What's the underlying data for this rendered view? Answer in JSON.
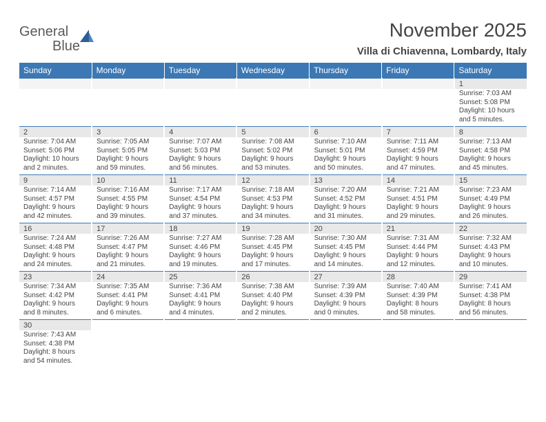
{
  "logo": {
    "word1": "General",
    "word2": "Blue"
  },
  "title": "November 2025",
  "location": "Villa di Chiavenna, Lombardy, Italy",
  "colors": {
    "header_bg": "#3c78b4",
    "header_text": "#ffffff",
    "daynum_bg": "#e8e8e8",
    "rule": "#3c78b4",
    "text": "#444444",
    "logo_gray": "#5a5a5a",
    "logo_blue": "#3c78b4"
  },
  "typography": {
    "title_fontsize": 28,
    "location_fontsize": 15,
    "weekday_fontsize": 12,
    "daynum_fontsize": 11,
    "body_fontsize": 10
  },
  "weekdays": [
    "Sunday",
    "Monday",
    "Tuesday",
    "Wednesday",
    "Thursday",
    "Friday",
    "Saturday"
  ],
  "weeks": [
    [
      null,
      null,
      null,
      null,
      null,
      null,
      {
        "d": "1",
        "sr": "Sunrise: 7:03 AM",
        "ss": "Sunset: 5:08 PM",
        "dl": "Daylight: 10 hours and 5 minutes."
      }
    ],
    [
      {
        "d": "2",
        "sr": "Sunrise: 7:04 AM",
        "ss": "Sunset: 5:06 PM",
        "dl": "Daylight: 10 hours and 2 minutes."
      },
      {
        "d": "3",
        "sr": "Sunrise: 7:05 AM",
        "ss": "Sunset: 5:05 PM",
        "dl": "Daylight: 9 hours and 59 minutes."
      },
      {
        "d": "4",
        "sr": "Sunrise: 7:07 AM",
        "ss": "Sunset: 5:03 PM",
        "dl": "Daylight: 9 hours and 56 minutes."
      },
      {
        "d": "5",
        "sr": "Sunrise: 7:08 AM",
        "ss": "Sunset: 5:02 PM",
        "dl": "Daylight: 9 hours and 53 minutes."
      },
      {
        "d": "6",
        "sr": "Sunrise: 7:10 AM",
        "ss": "Sunset: 5:01 PM",
        "dl": "Daylight: 9 hours and 50 minutes."
      },
      {
        "d": "7",
        "sr": "Sunrise: 7:11 AM",
        "ss": "Sunset: 4:59 PM",
        "dl": "Daylight: 9 hours and 47 minutes."
      },
      {
        "d": "8",
        "sr": "Sunrise: 7:13 AM",
        "ss": "Sunset: 4:58 PM",
        "dl": "Daylight: 9 hours and 45 minutes."
      }
    ],
    [
      {
        "d": "9",
        "sr": "Sunrise: 7:14 AM",
        "ss": "Sunset: 4:57 PM",
        "dl": "Daylight: 9 hours and 42 minutes."
      },
      {
        "d": "10",
        "sr": "Sunrise: 7:16 AM",
        "ss": "Sunset: 4:55 PM",
        "dl": "Daylight: 9 hours and 39 minutes."
      },
      {
        "d": "11",
        "sr": "Sunrise: 7:17 AM",
        "ss": "Sunset: 4:54 PM",
        "dl": "Daylight: 9 hours and 37 minutes."
      },
      {
        "d": "12",
        "sr": "Sunrise: 7:18 AM",
        "ss": "Sunset: 4:53 PM",
        "dl": "Daylight: 9 hours and 34 minutes."
      },
      {
        "d": "13",
        "sr": "Sunrise: 7:20 AM",
        "ss": "Sunset: 4:52 PM",
        "dl": "Daylight: 9 hours and 31 minutes."
      },
      {
        "d": "14",
        "sr": "Sunrise: 7:21 AM",
        "ss": "Sunset: 4:51 PM",
        "dl": "Daylight: 9 hours and 29 minutes."
      },
      {
        "d": "15",
        "sr": "Sunrise: 7:23 AM",
        "ss": "Sunset: 4:49 PM",
        "dl": "Daylight: 9 hours and 26 minutes."
      }
    ],
    [
      {
        "d": "16",
        "sr": "Sunrise: 7:24 AM",
        "ss": "Sunset: 4:48 PM",
        "dl": "Daylight: 9 hours and 24 minutes."
      },
      {
        "d": "17",
        "sr": "Sunrise: 7:26 AM",
        "ss": "Sunset: 4:47 PM",
        "dl": "Daylight: 9 hours and 21 minutes."
      },
      {
        "d": "18",
        "sr": "Sunrise: 7:27 AM",
        "ss": "Sunset: 4:46 PM",
        "dl": "Daylight: 9 hours and 19 minutes."
      },
      {
        "d": "19",
        "sr": "Sunrise: 7:28 AM",
        "ss": "Sunset: 4:45 PM",
        "dl": "Daylight: 9 hours and 17 minutes."
      },
      {
        "d": "20",
        "sr": "Sunrise: 7:30 AM",
        "ss": "Sunset: 4:45 PM",
        "dl": "Daylight: 9 hours and 14 minutes."
      },
      {
        "d": "21",
        "sr": "Sunrise: 7:31 AM",
        "ss": "Sunset: 4:44 PM",
        "dl": "Daylight: 9 hours and 12 minutes."
      },
      {
        "d": "22",
        "sr": "Sunrise: 7:32 AM",
        "ss": "Sunset: 4:43 PM",
        "dl": "Daylight: 9 hours and 10 minutes."
      }
    ],
    [
      {
        "d": "23",
        "sr": "Sunrise: 7:34 AM",
        "ss": "Sunset: 4:42 PM",
        "dl": "Daylight: 9 hours and 8 minutes."
      },
      {
        "d": "24",
        "sr": "Sunrise: 7:35 AM",
        "ss": "Sunset: 4:41 PM",
        "dl": "Daylight: 9 hours and 6 minutes."
      },
      {
        "d": "25",
        "sr": "Sunrise: 7:36 AM",
        "ss": "Sunset: 4:41 PM",
        "dl": "Daylight: 9 hours and 4 minutes."
      },
      {
        "d": "26",
        "sr": "Sunrise: 7:38 AM",
        "ss": "Sunset: 4:40 PM",
        "dl": "Daylight: 9 hours and 2 minutes."
      },
      {
        "d": "27",
        "sr": "Sunrise: 7:39 AM",
        "ss": "Sunset: 4:39 PM",
        "dl": "Daylight: 9 hours and 0 minutes."
      },
      {
        "d": "28",
        "sr": "Sunrise: 7:40 AM",
        "ss": "Sunset: 4:39 PM",
        "dl": "Daylight: 8 hours and 58 minutes."
      },
      {
        "d": "29",
        "sr": "Sunrise: 7:41 AM",
        "ss": "Sunset: 4:38 PM",
        "dl": "Daylight: 8 hours and 56 minutes."
      }
    ],
    [
      {
        "d": "30",
        "sr": "Sunrise: 7:43 AM",
        "ss": "Sunset: 4:38 PM",
        "dl": "Daylight: 8 hours and 54 minutes."
      },
      null,
      null,
      null,
      null,
      null,
      null
    ]
  ]
}
